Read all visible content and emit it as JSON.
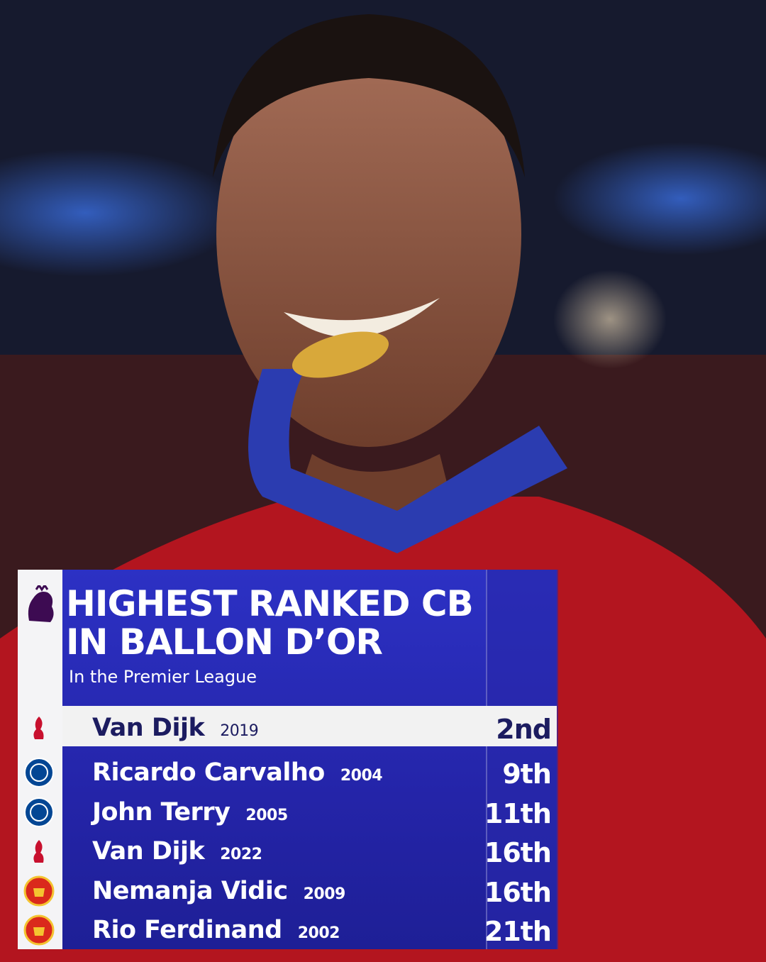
{
  "header": {
    "title_lines": [
      "HIGHEST RANKED CB",
      "IN BALLON D’OR"
    ],
    "subtitle": "In the Premier League"
  },
  "table": {
    "rows": [
      {
        "name": "Van Dijk",
        "year": "2019",
        "rank": "2nd",
        "club": "liverpool"
      },
      {
        "name": "Ricardo Carvalho",
        "year": "2004",
        "rank": "9th",
        "club": "chelsea"
      },
      {
        "name": "John Terry",
        "year": "2005",
        "rank": "11th",
        "club": "chelsea"
      },
      {
        "name": "Van Dijk",
        "year": "2022",
        "rank": "16th",
        "club": "liverpool"
      },
      {
        "name": "Nemanja Vidic",
        "year": "2009",
        "rank": "16th",
        "club": "united"
      },
      {
        "name": "Rio Ferdinand",
        "year": "2002",
        "rank": "21th",
        "club": "united"
      }
    ]
  }
}
